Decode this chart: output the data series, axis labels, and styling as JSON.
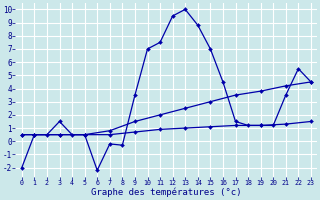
{
  "xlabel": "Graphe des températures (°c)",
  "background_color": "#cce8ea",
  "grid_color": "#aed8d8",
  "line_color": "#0000aa",
  "xlim": [
    -0.5,
    23.5
  ],
  "ylim": [
    -2.7,
    10.5
  ],
  "yticks": [
    -2,
    -1,
    0,
    1,
    2,
    3,
    4,
    5,
    6,
    7,
    8,
    9,
    10
  ],
  "xticks": [
    0,
    1,
    2,
    3,
    4,
    5,
    6,
    7,
    8,
    9,
    10,
    11,
    12,
    13,
    14,
    15,
    16,
    17,
    18,
    19,
    20,
    21,
    22,
    23
  ],
  "line1_x": [
    0,
    1,
    2,
    3,
    4,
    5,
    6,
    7,
    8,
    9,
    10,
    11,
    12,
    13,
    14,
    15,
    16,
    17,
    18,
    19,
    20,
    21,
    22,
    23
  ],
  "line1_y": [
    -2,
    0.5,
    0.5,
    1.5,
    0.5,
    0.5,
    -2.2,
    -0.2,
    -0.3,
    3.5,
    7.0,
    7.5,
    9.5,
    10.0,
    8.8,
    7.0,
    4.5,
    1.5,
    1.2,
    1.2,
    1.2,
    3.5,
    5.5,
    4.5
  ],
  "line2_x": [
    0,
    1,
    3,
    5,
    7,
    9,
    11,
    13,
    15,
    17,
    19,
    21,
    23
  ],
  "line2_y": [
    0.5,
    0.5,
    0.5,
    0.5,
    0.8,
    1.5,
    2.0,
    2.5,
    3.0,
    3.5,
    3.8,
    4.2,
    4.5
  ],
  "line3_x": [
    0,
    1,
    3,
    5,
    7,
    9,
    11,
    13,
    15,
    17,
    19,
    21,
    23
  ],
  "line3_y": [
    0.5,
    0.5,
    0.5,
    0.5,
    0.5,
    0.7,
    0.9,
    1.0,
    1.1,
    1.2,
    1.2,
    1.3,
    1.5
  ]
}
